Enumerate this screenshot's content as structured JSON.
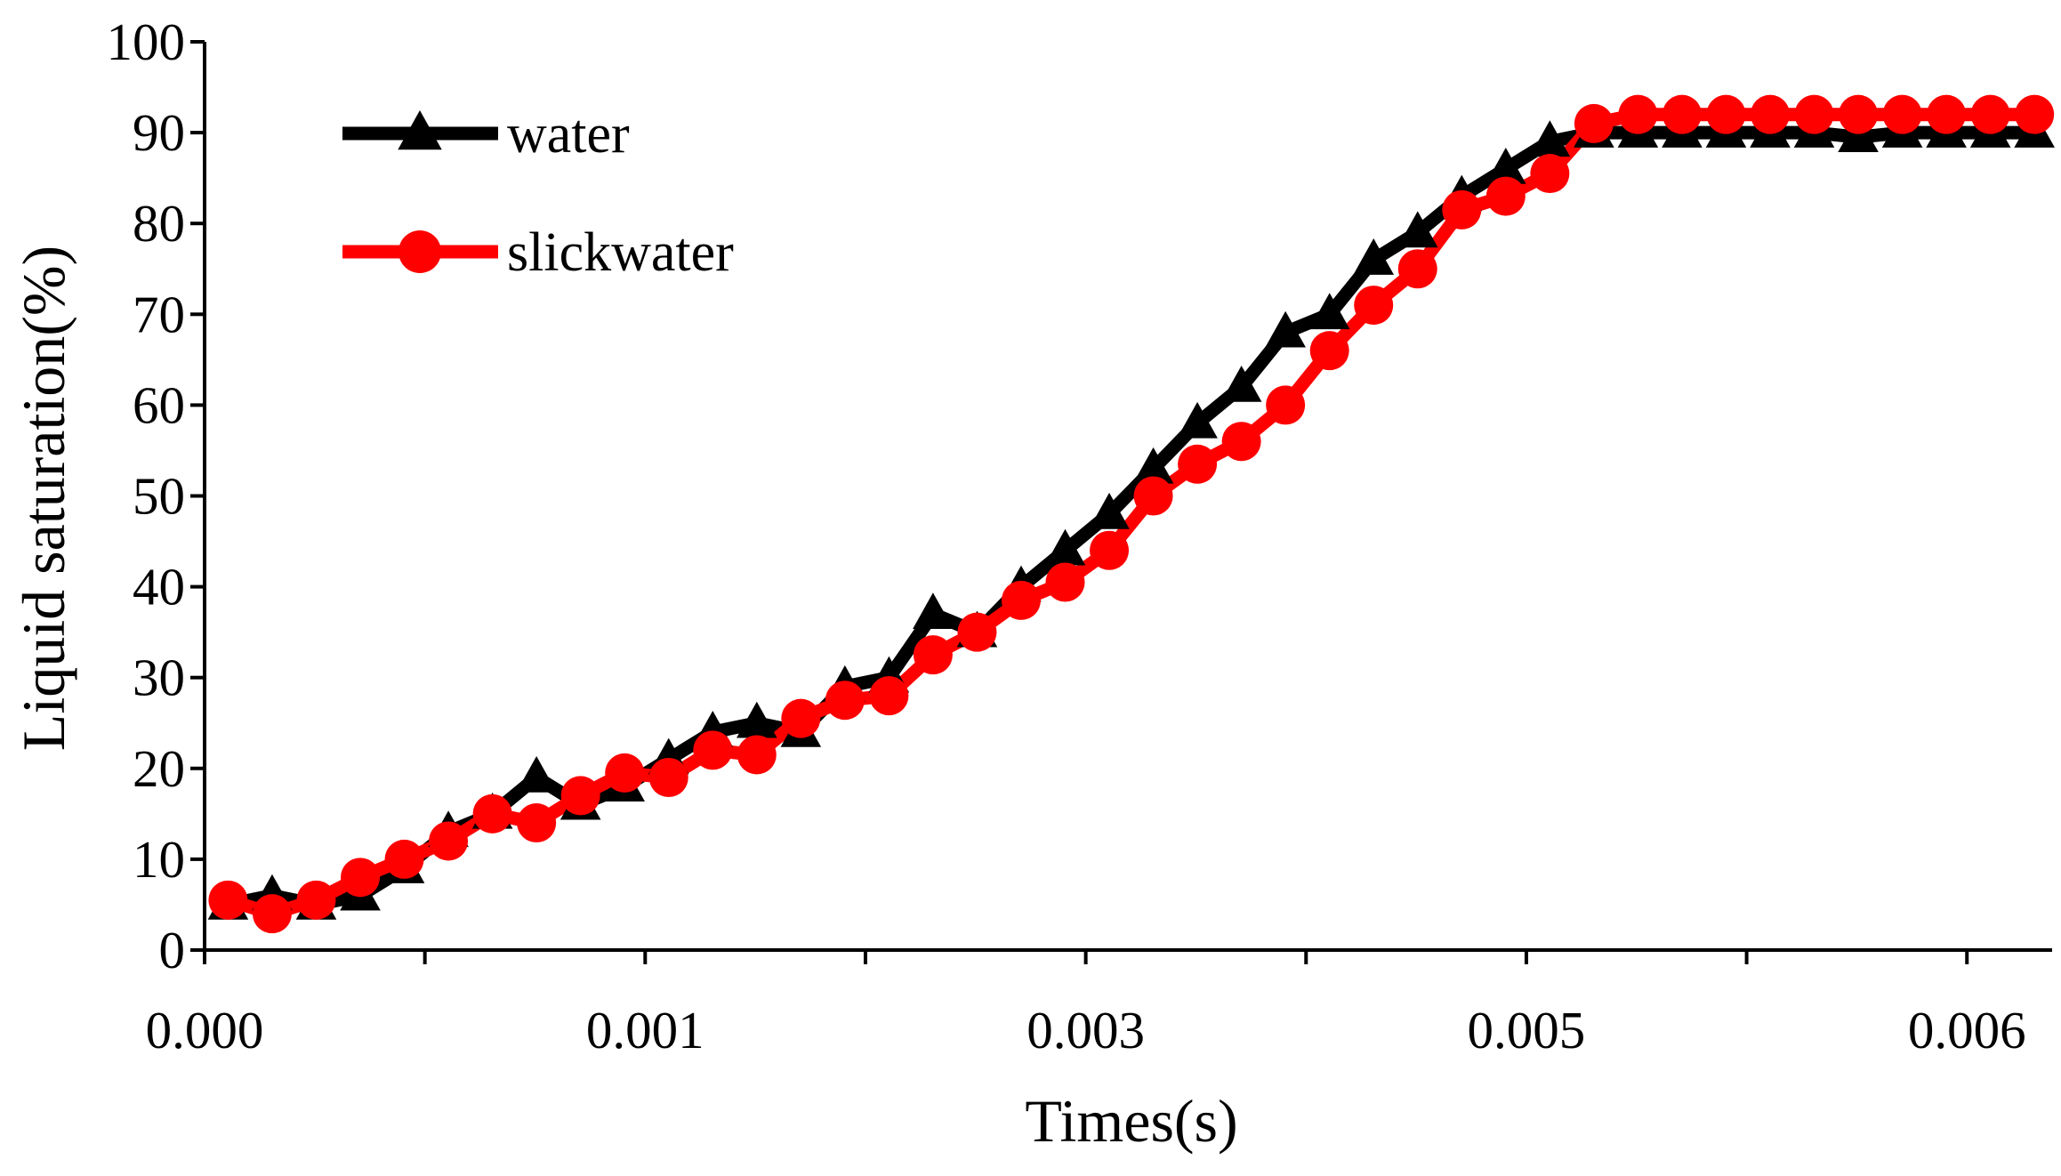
{
  "chart_data": {
    "type": "line",
    "title": "",
    "xlabel": "Times(s)",
    "ylabel": "Liquid saturation(%)",
    "xlim": [
      0,
      0.00629
    ],
    "ylim": [
      0,
      100
    ],
    "x_tick_values": [
      0,
      0.00075,
      0.0015,
      0.00225,
      0.003,
      0.00375,
      0.0045,
      0.00525,
      0.006
    ],
    "x_tick_labels": [
      "0.000",
      "0.001",
      "0.003",
      "0.005",
      "0.006"
    ],
    "x_tick_label_positions": [
      0,
      0.0015,
      0.003,
      0.0045,
      0.006
    ],
    "y_ticks": [
      0,
      10,
      20,
      30,
      40,
      50,
      60,
      70,
      80,
      90,
      100
    ],
    "legend_position": "top-left",
    "series": [
      {
        "name": "water",
        "color": "#000000",
        "marker": "triangle",
        "x": [
          8e-05,
          0.00023,
          0.00038,
          0.00053,
          0.00068,
          0.00083,
          0.00098,
          0.00113,
          0.00128,
          0.00143,
          0.00158,
          0.00173,
          0.00188,
          0.00203,
          0.00218,
          0.00233,
          0.00248,
          0.00263,
          0.00278,
          0.00293,
          0.00308,
          0.00323,
          0.00338,
          0.00353,
          0.00368,
          0.00383,
          0.00398,
          0.00413,
          0.00428,
          0.00443,
          0.00458,
          0.00473,
          0.00488,
          0.00503,
          0.00518,
          0.00533,
          0.00548,
          0.00563,
          0.00578,
          0.00593,
          0.00608,
          0.00623
        ],
        "values": [
          5,
          6,
          5,
          6,
          9,
          13,
          15,
          19,
          16,
          18,
          21,
          24,
          25,
          24,
          29,
          30,
          37,
          35,
          40,
          44,
          48,
          53,
          58,
          62,
          68,
          70,
          76,
          79,
          83,
          86,
          89,
          90,
          90,
          90,
          90,
          90,
          90,
          89.5,
          90,
          90,
          90,
          90
        ]
      },
      {
        "name": "slickwater",
        "color": "#ff0000",
        "marker": "circle",
        "x": [
          8e-05,
          0.00023,
          0.00038,
          0.00053,
          0.00068,
          0.00083,
          0.00098,
          0.00113,
          0.00128,
          0.00143,
          0.00158,
          0.00173,
          0.00188,
          0.00203,
          0.00218,
          0.00233,
          0.00248,
          0.00263,
          0.00278,
          0.00293,
          0.00308,
          0.00323,
          0.00338,
          0.00353,
          0.00368,
          0.00383,
          0.00398,
          0.00413,
          0.00428,
          0.00443,
          0.00458,
          0.00473,
          0.00488,
          0.00503,
          0.00518,
          0.00533,
          0.00548,
          0.00563,
          0.00578,
          0.00593,
          0.00608,
          0.00623
        ],
        "values": [
          5.5,
          4,
          5.5,
          8,
          10,
          12,
          15,
          14,
          17,
          19.5,
          19,
          22,
          21.5,
          25.5,
          27.5,
          28,
          32.5,
          35,
          38.5,
          40.5,
          44,
          50,
          53.5,
          56,
          60,
          66,
          71,
          75,
          81.5,
          83,
          85.5,
          91,
          92,
          92,
          92,
          92,
          92,
          92,
          92,
          92,
          92,
          92
        ]
      }
    ]
  }
}
